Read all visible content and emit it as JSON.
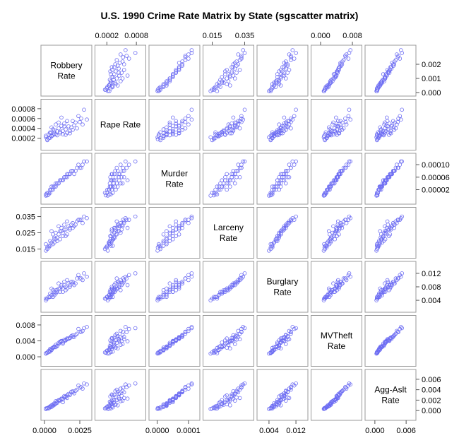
{
  "chart_data": {
    "type": "scatter",
    "title": "U.S. 1990 Crime Rate Matrix by State (sgscatter matrix)",
    "marker_color": "#6b6bf2",
    "frame_color": "#9a9a9a",
    "variables": [
      {
        "name": "Robbery Rate",
        "lines": [
          "Robbery",
          "Rate"
        ],
        "range": [
          0.0,
          0.0031
        ],
        "ticks": [
          "0.0000",
          "0.0025"
        ],
        "tick_values": [
          0.0,
          0.0025
        ],
        "right_ticks": [
          "0.000",
          "0.001",
          "0.002"
        ],
        "right_tick_values": [
          0.0,
          0.001,
          0.002
        ]
      },
      {
        "name": "Rape Rate",
        "lines": [
          "Rape Rate"
        ],
        "range": [
          3e-05,
          0.00092
        ],
        "ticks": [
          "0.0002",
          "0.0008"
        ],
        "tick_values": [
          0.0002,
          0.0008
        ],
        "left_ticks": [
          "0.0002",
          "0.0004",
          "0.0006",
          "0.0008"
        ],
        "left_tick_values": [
          0.0002,
          0.0004,
          0.0006,
          0.0008
        ]
      },
      {
        "name": "Murder Rate",
        "lines": [
          "Murder",
          "Rate"
        ],
        "range": [
          -1.5e-05,
          0.000125
        ],
        "ticks": [
          "0.0000",
          "0.0001"
        ],
        "tick_values": [
          0.0,
          0.0001
        ],
        "right_ticks": [
          "0.00002",
          "0.00006",
          "0.00010"
        ],
        "right_tick_values": [
          2e-05,
          6e-05,
          0.0001
        ]
      },
      {
        "name": "Larceny Rate",
        "lines": [
          "Larceny",
          "Rate"
        ],
        "range": [
          0.0115,
          0.0385
        ],
        "ticks": [
          "0.015",
          "0.035"
        ],
        "tick_values": [
          0.015,
          0.035
        ],
        "left_ticks": [
          "0.015",
          "0.025",
          "0.035"
        ],
        "left_tick_values": [
          0.015,
          0.025,
          0.035
        ]
      },
      {
        "name": "Burglary Rate",
        "lines": [
          "Burglary",
          "Rate"
        ],
        "range": [
          0.0015,
          0.0145
        ],
        "ticks": [
          "0.004",
          "0.012"
        ],
        "tick_values": [
          0.004,
          0.012
        ],
        "right_ticks": [
          "0.004",
          "0.008",
          "0.012"
        ],
        "right_tick_values": [
          0.004,
          0.008,
          0.012
        ]
      },
      {
        "name": "MVTheft Rate",
        "lines": [
          "MVTheft",
          "Rate"
        ],
        "range": [
          -0.0015,
          0.0095
        ],
        "ticks": [
          "0.000",
          "0.008"
        ],
        "tick_values": [
          0.0,
          0.008
        ],
        "left_ticks": [
          "0.000",
          "0.004",
          "0.008"
        ],
        "left_tick_values": [
          0.0,
          0.004,
          0.008
        ]
      },
      {
        "name": "Agg-Aslt Rate",
        "lines": [
          "Agg-Aslt",
          "Rate"
        ],
        "range": [
          -0.0012,
          0.0072
        ],
        "ticks": [
          "0.000",
          "0.006"
        ],
        "tick_values": [
          0.0,
          0.006
        ],
        "right_ticks": [
          "0.000",
          "0.002",
          "0.004",
          "0.006"
        ],
        "right_tick_values": [
          0.0,
          0.002,
          0.004,
          0.006
        ]
      }
    ],
    "observations": [
      [
        0.0003,
        0.00028,
        5e-06,
        0.017,
        0.005,
        0.0012,
        0.0004
      ],
      [
        0.0007,
        0.00032,
        3e-05,
        0.021,
        0.006,
        0.0025,
        0.0012
      ],
      [
        0.0012,
        0.00045,
        5e-05,
        0.026,
        0.008,
        0.004,
        0.0022
      ],
      [
        0.0022,
        0.00052,
        8e-05,
        0.03,
        0.009,
        0.0055,
        0.0038
      ],
      [
        0.0002,
        0.00018,
        2e-06,
        0.016,
        0.0045,
        0.001,
        0.0005
      ],
      [
        0.0005,
        0.00025,
        2e-05,
        0.019,
        0.0055,
        0.0018,
        0.001
      ],
      [
        0.001,
        0.0004,
        4e-05,
        0.024,
        0.0075,
        0.0035,
        0.002
      ],
      [
        0.0018,
        0.00035,
        7e-05,
        0.028,
        0.0085,
        0.0048,
        0.003
      ],
      [
        0.0026,
        0.0006,
        9e-05,
        0.033,
        0.0105,
        0.0062,
        0.0045
      ],
      [
        0.0015,
        0.00038,
        6e-05,
        0.027,
        0.008,
        0.0042,
        0.0026
      ],
      [
        0.0001,
        0.00022,
        1e-06,
        0.014,
        0.004,
        0.0008,
        0.0003
      ],
      [
        0.0004,
        0.0003,
        2e-05,
        0.02,
        0.006,
        0.002,
        0.0008
      ],
      [
        0.0008,
        0.00048,
        4e-05,
        0.025,
        0.007,
        0.003,
        0.0018
      ],
      [
        0.0013,
        0.00028,
        5e-05,
        0.023,
        0.0065,
        0.0033,
        0.0016
      ],
      [
        0.002,
        0.00055,
        8e-05,
        0.031,
        0.0095,
        0.005,
        0.0035
      ],
      [
        0.0006,
        0.00026,
        3e-05,
        0.018,
        0.005,
        0.0022,
        0.0009
      ],
      [
        0.0009,
        0.00034,
        4e-05,
        0.022,
        0.007,
        0.0028,
        0.0015
      ],
      [
        0.0017,
        0.00044,
        7e-05,
        0.029,
        0.009,
        0.0045,
        0.0032
      ],
      [
        0.003,
        0.00058,
        0.00011,
        0.034,
        0.011,
        0.0075,
        0.005
      ],
      [
        0.0011,
        0.0003,
        5e-05,
        0.026,
        0.0075,
        0.0038,
        0.0019
      ],
      [
        0.0003,
        0.0002,
        1e-05,
        0.016,
        0.005,
        0.0015,
        0.0006
      ],
      [
        0.0007,
        0.00036,
        3e-05,
        0.022,
        0.0065,
        0.0026,
        0.0011
      ],
      [
        0.0014,
        0.0005,
        6e-05,
        0.027,
        0.0085,
        0.004,
        0.0028
      ],
      [
        0.0024,
        0.00065,
        0.0001,
        0.033,
        0.0115,
        0.007,
        0.0048
      ],
      [
        0.0019,
        0.00042,
        8e-05,
        0.03,
        0.0095,
        0.0052,
        0.0036
      ],
      [
        0.0005,
        0.00024,
        2e-05,
        0.019,
        0.0055,
        0.0017,
        0.0007
      ],
      [
        0.0008,
        0.00028,
        3e-05,
        0.021,
        0.006,
        0.0024,
        0.0013
      ],
      [
        0.0013,
        0.00035,
        5e-05,
        0.025,
        0.0075,
        0.0036,
        0.0021
      ],
      [
        0.0021,
        0.00046,
        7e-05,
        0.029,
        0.0085,
        0.005,
        0.0033
      ],
      [
        0.0004,
        0.00032,
        1e-05,
        0.017,
        0.005,
        0.0013,
        0.0006
      ],
      [
        0.0016,
        0.00055,
        6e-05,
        0.032,
        0.01,
        0.0044,
        0.0024
      ],
      [
        0.0027,
        0.00048,
        0.0001,
        0.031,
        0.01,
        0.0065,
        0.0042
      ],
      [
        0.0009,
        0.00026,
        4e-05,
        0.02,
        0.0065,
        0.0027,
        0.0017
      ],
      [
        0.0002,
        0.00016,
        1e-05,
        0.015,
        0.0045,
        0.0011,
        0.0004
      ],
      [
        0.0012,
        0.00062,
        5e-05,
        0.028,
        0.0085,
        0.0039,
        0.0023
      ],
      [
        0.0006,
        0.00038,
        2e-05,
        0.024,
        0.007,
        0.0023,
        0.0012
      ],
      [
        0.0018,
        0.0003,
        7e-05,
        0.027,
        0.008,
        0.0047,
        0.0031
      ],
      [
        0.0023,
        0.0004,
        9e-05,
        0.032,
        0.0105,
        0.0058,
        0.004
      ],
      [
        0.001,
        0.00052,
        4e-05,
        0.029,
        0.009,
        0.0032,
        0.0019
      ],
      [
        0.0015,
        0.00027,
        6e-05,
        0.023,
        0.007,
        0.0041,
        0.0027
      ],
      [
        0.0001,
        0.00025,
        5e-06,
        0.018,
        0.0045,
        0.0009,
        0.0004
      ],
      [
        0.0005,
        0.00042,
        3e-05,
        0.026,
        0.0075,
        0.0021,
        0.001
      ],
      [
        0.0028,
        0.00078,
        0.00011,
        0.035,
        0.012,
        0.0072,
        0.0052
      ],
      [
        0.0011,
        0.00033,
        5e-05,
        0.021,
        0.0065,
        0.0036,
        0.002
      ],
      [
        0.0007,
        0.00029,
        3e-05,
        0.019,
        0.0055,
        0.0025,
        0.0014
      ],
      [
        0.002,
        0.00037,
        8e-05,
        0.028,
        0.009,
        0.0054,
        0.0037
      ],
      [
        0.0014,
        0.00044,
        6e-05,
        0.03,
        0.0095,
        0.0043,
        0.0025
      ],
      [
        0.0004,
        0.00021,
        2e-05,
        0.017,
        0.005,
        0.0016,
        0.0008
      ],
      [
        0.0025,
        0.00053,
        9e-05,
        0.033,
        0.0105,
        0.0063,
        0.0044
      ],
      [
        0.0016,
        0.00031,
        7e-05,
        0.024,
        0.0075,
        0.0046,
        0.0029
      ]
    ]
  }
}
